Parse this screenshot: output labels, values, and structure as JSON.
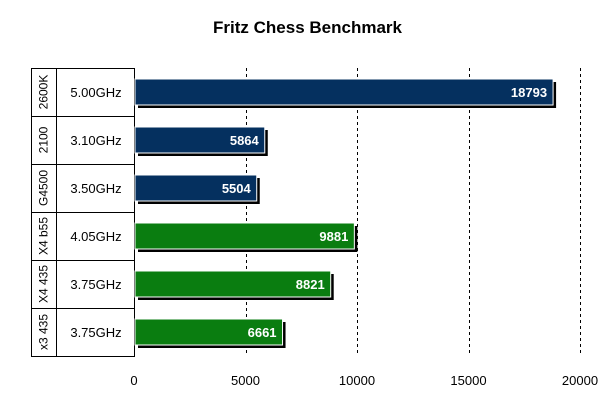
{
  "chart_data": {
    "type": "bar",
    "orientation": "horizontal",
    "title": "Fritz Chess Benchmark",
    "xlim": [
      0,
      20000
    ],
    "xticks": [
      0,
      5000,
      10000,
      15000,
      20000
    ],
    "xtick_labels": [
      "0",
      "5000",
      "10000",
      "15000",
      "20000"
    ],
    "grid": "vertical-dashed",
    "legend": "none",
    "rows": [
      {
        "group": "2600K",
        "category": "5.00GHz",
        "value": 18793,
        "label": "18793",
        "color": "#05305f"
      },
      {
        "group": "2100",
        "category": "3.10GHz",
        "value": 5864,
        "label": "5864",
        "color": "#05305f"
      },
      {
        "group": "G4500",
        "category": "3.50GHz",
        "value": 5504,
        "label": "5504",
        "color": "#05305f"
      },
      {
        "group": "X4 b55",
        "category": "4.05GHz",
        "value": 9881,
        "label": "9881",
        "color": "#0a7d10"
      },
      {
        "group": "X4 435",
        "category": "3.75GHz",
        "value": 8821,
        "label": "8821",
        "color": "#0a7d10"
      },
      {
        "group": "x3 435",
        "category": "3.75GHz",
        "value": 6661,
        "label": "6661",
        "color": "#0a7d10"
      }
    ]
  }
}
